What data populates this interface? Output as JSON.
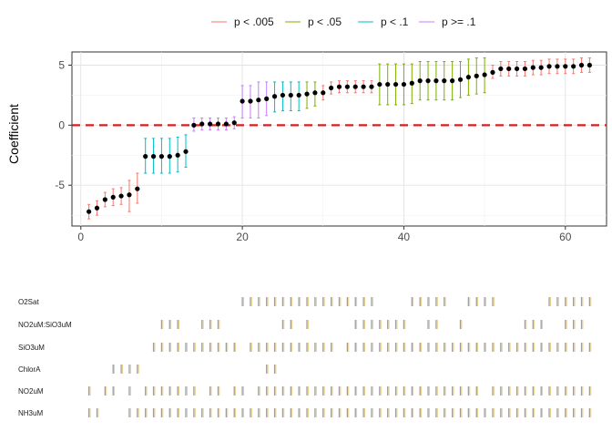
{
  "legend": {
    "items": [
      {
        "label": "p < .005",
        "color": "#F8766D"
      },
      {
        "label": "p < .05",
        "color": "#7CAE00"
      },
      {
        "label": "p < .1",
        "color": "#00BFC4"
      },
      {
        "label": "p >= .1",
        "color": "#C77CFF"
      }
    ],
    "placement": "top"
  },
  "chart_data": [
    {
      "type": "scatter",
      "title": "",
      "xlabel": "",
      "ylabel": "Coefficient",
      "xlim": [
        -1.1,
        65.1
      ],
      "ylim": [
        -8.4,
        6.1
      ],
      "x_ticks": [
        0,
        20,
        40,
        60
      ],
      "y_ticks": [
        -5,
        0,
        5
      ],
      "grid": true,
      "reference_line": {
        "y": 0,
        "style": "dashed",
        "color": "#DD1C1C"
      },
      "points": [
        {
          "x": 1,
          "y": -7.2,
          "lo": -7.8,
          "hi": -6.6,
          "group": "p < .005"
        },
        {
          "x": 2,
          "y": -6.9,
          "lo": -7.5,
          "hi": -6.3,
          "group": "p < .005"
        },
        {
          "x": 3,
          "y": -6.2,
          "lo": -6.8,
          "hi": -5.6,
          "group": "p < .005"
        },
        {
          "x": 4,
          "y": -6.0,
          "lo": -6.7,
          "hi": -5.3,
          "group": "p < .005"
        },
        {
          "x": 5,
          "y": -5.9,
          "lo": -6.6,
          "hi": -5.2,
          "group": "p < .005"
        },
        {
          "x": 6,
          "y": -5.8,
          "lo": -7.2,
          "hi": -4.6,
          "group": "p < .005"
        },
        {
          "x": 7,
          "y": -5.3,
          "lo": -6.5,
          "hi": -4.0,
          "group": "p < .005"
        },
        {
          "x": 8,
          "y": -2.6,
          "lo": -4.0,
          "hi": -1.1,
          "group": "p < .1"
        },
        {
          "x": 9,
          "y": -2.6,
          "lo": -4.0,
          "hi": -1.1,
          "group": "p < .1"
        },
        {
          "x": 10,
          "y": -2.6,
          "lo": -4.0,
          "hi": -1.1,
          "group": "p < .1"
        },
        {
          "x": 11,
          "y": -2.6,
          "lo": -4.0,
          "hi": -1.1,
          "group": "p < .1"
        },
        {
          "x": 12,
          "y": -2.5,
          "lo": -3.9,
          "hi": -1.0,
          "group": "p < .1"
        },
        {
          "x": 13,
          "y": -2.2,
          "lo": -3.5,
          "hi": -0.8,
          "group": "p < .1"
        },
        {
          "x": 14,
          "y": 0.0,
          "lo": -0.5,
          "hi": 0.6,
          "group": "p >= .1"
        },
        {
          "x": 15,
          "y": 0.1,
          "lo": -0.4,
          "hi": 0.6,
          "group": "p >= .1"
        },
        {
          "x": 16,
          "y": 0.1,
          "lo": -0.4,
          "hi": 0.6,
          "group": "p >= .1"
        },
        {
          "x": 17,
          "y": 0.1,
          "lo": -0.4,
          "hi": 0.6,
          "group": "p >= .1"
        },
        {
          "x": 18,
          "y": 0.1,
          "lo": -0.4,
          "hi": 0.6,
          "group": "p >= .1"
        },
        {
          "x": 19,
          "y": 0.2,
          "lo": -0.3,
          "hi": 0.7,
          "group": "p >= .1"
        },
        {
          "x": 20,
          "y": 2.0,
          "lo": 0.6,
          "hi": 3.3,
          "group": "p >= .1"
        },
        {
          "x": 21,
          "y": 2.0,
          "lo": 0.6,
          "hi": 3.3,
          "group": "p >= .1"
        },
        {
          "x": 22,
          "y": 2.1,
          "lo": 0.6,
          "hi": 3.6,
          "group": "p >= .1"
        },
        {
          "x": 23,
          "y": 2.2,
          "lo": 0.8,
          "hi": 3.6,
          "group": "p >= .1"
        },
        {
          "x": 24,
          "y": 2.4,
          "lo": 1.1,
          "hi": 3.6,
          "group": "p < .1"
        },
        {
          "x": 25,
          "y": 2.5,
          "lo": 1.2,
          "hi": 3.6,
          "group": "p < .1"
        },
        {
          "x": 26,
          "y": 2.5,
          "lo": 1.2,
          "hi": 3.6,
          "group": "p < .1"
        },
        {
          "x": 27,
          "y": 2.5,
          "lo": 1.2,
          "hi": 3.6,
          "group": "p < .1"
        },
        {
          "x": 28,
          "y": 2.6,
          "lo": 1.4,
          "hi": 3.6,
          "group": "p < .05"
        },
        {
          "x": 29,
          "y": 2.7,
          "lo": 1.6,
          "hi": 3.6,
          "group": "p < .05"
        },
        {
          "x": 30,
          "y": 2.7,
          "lo": 2.1,
          "hi": 3.3,
          "group": "p < .005"
        },
        {
          "x": 31,
          "y": 3.1,
          "lo": 2.6,
          "hi": 3.6,
          "group": "p < .005"
        },
        {
          "x": 32,
          "y": 3.2,
          "lo": 2.7,
          "hi": 3.7,
          "group": "p < .005"
        },
        {
          "x": 33,
          "y": 3.2,
          "lo": 2.7,
          "hi": 3.7,
          "group": "p < .005"
        },
        {
          "x": 34,
          "y": 3.2,
          "lo": 2.7,
          "hi": 3.7,
          "group": "p < .005"
        },
        {
          "x": 35,
          "y": 3.2,
          "lo": 2.7,
          "hi": 3.7,
          "group": "p < .005"
        },
        {
          "x": 36,
          "y": 3.2,
          "lo": 2.7,
          "hi": 3.7,
          "group": "p < .005"
        },
        {
          "x": 37,
          "y": 3.4,
          "lo": 1.7,
          "hi": 5.1,
          "group": "p < .05"
        },
        {
          "x": 38,
          "y": 3.4,
          "lo": 1.7,
          "hi": 5.1,
          "group": "p < .05"
        },
        {
          "x": 39,
          "y": 3.4,
          "lo": 1.7,
          "hi": 5.1,
          "group": "p < .05"
        },
        {
          "x": 40,
          "y": 3.4,
          "lo": 1.7,
          "hi": 5.1,
          "group": "p < .05"
        },
        {
          "x": 41,
          "y": 3.5,
          "lo": 1.8,
          "hi": 5.1,
          "group": "p < .05"
        },
        {
          "x": 42,
          "y": 3.7,
          "lo": 2.1,
          "hi": 5.3,
          "group": "p < .05"
        },
        {
          "x": 43,
          "y": 3.7,
          "lo": 2.1,
          "hi": 5.3,
          "group": "p < .05"
        },
        {
          "x": 44,
          "y": 3.7,
          "lo": 2.1,
          "hi": 5.3,
          "group": "p < .05"
        },
        {
          "x": 45,
          "y": 3.7,
          "lo": 2.1,
          "hi": 5.3,
          "group": "p < .05"
        },
        {
          "x": 46,
          "y": 3.7,
          "lo": 2.1,
          "hi": 5.3,
          "group": "p < .05"
        },
        {
          "x": 47,
          "y": 3.8,
          "lo": 2.3,
          "hi": 5.3,
          "group": "p < .05"
        },
        {
          "x": 48,
          "y": 4.0,
          "lo": 2.5,
          "hi": 5.5,
          "group": "p < .05"
        },
        {
          "x": 49,
          "y": 4.1,
          "lo": 2.6,
          "hi": 5.6,
          "group": "p < .05"
        },
        {
          "x": 50,
          "y": 4.2,
          "lo": 2.7,
          "hi": 5.6,
          "group": "p < .05"
        },
        {
          "x": 51,
          "y": 4.4,
          "lo": 3.9,
          "hi": 5.0,
          "group": "p < .005"
        },
        {
          "x": 52,
          "y": 4.7,
          "lo": 4.1,
          "hi": 5.3,
          "group": "p < .005"
        },
        {
          "x": 53,
          "y": 4.7,
          "lo": 4.1,
          "hi": 5.3,
          "group": "p < .005"
        },
        {
          "x": 54,
          "y": 4.7,
          "lo": 4.1,
          "hi": 5.3,
          "group": "p < .005"
        },
        {
          "x": 55,
          "y": 4.7,
          "lo": 4.1,
          "hi": 5.3,
          "group": "p < .005"
        },
        {
          "x": 56,
          "y": 4.8,
          "lo": 4.2,
          "hi": 5.4,
          "group": "p < .005"
        },
        {
          "x": 57,
          "y": 4.8,
          "lo": 4.2,
          "hi": 5.4,
          "group": "p < .005"
        },
        {
          "x": 58,
          "y": 4.9,
          "lo": 4.3,
          "hi": 5.5,
          "group": "p < .005"
        },
        {
          "x": 59,
          "y": 4.9,
          "lo": 4.3,
          "hi": 5.5,
          "group": "p < .005"
        },
        {
          "x": 60,
          "y": 4.9,
          "lo": 4.3,
          "hi": 5.5,
          "group": "p < .005"
        },
        {
          "x": 61,
          "y": 4.9,
          "lo": 4.3,
          "hi": 5.5,
          "group": "p < .005"
        },
        {
          "x": 62,
          "y": 5.0,
          "lo": 4.4,
          "hi": 5.6,
          "group": "p < .005"
        },
        {
          "x": 63,
          "y": 5.0,
          "lo": 4.4,
          "hi": 5.6,
          "group": "p < .005"
        }
      ]
    },
    {
      "type": "heatmap",
      "title": "",
      "xlim": [
        1,
        63
      ],
      "tick_color": "#9E9E9E",
      "tick_color_alt": "#E9C77F",
      "rows": [
        {
          "label": "O2Sat",
          "cols": [
            20,
            21,
            22,
            23,
            24,
            25,
            26,
            27,
            28,
            29,
            30,
            31,
            32,
            33,
            34,
            35,
            36,
            41,
            42,
            43,
            44,
            45,
            48,
            49,
            50,
            51,
            58,
            59,
            60,
            61,
            62,
            63
          ]
        },
        {
          "label": "NO2uM:SiO3uM",
          "cols": [
            10,
            11,
            12,
            15,
            16,
            17,
            25,
            26,
            28,
            34,
            35,
            36,
            37,
            38,
            39,
            40,
            43,
            44,
            47,
            55,
            56,
            57,
            60,
            61,
            62
          ]
        },
        {
          "label": "SiO3uM",
          "cols": [
            9,
            10,
            11,
            12,
            13,
            14,
            15,
            16,
            17,
            18,
            19,
            21,
            22,
            23,
            24,
            25,
            26,
            27,
            28,
            29,
            30,
            31,
            33,
            34,
            35,
            36,
            37,
            38,
            39,
            40,
            41,
            42,
            43,
            44,
            45,
            46,
            47,
            48,
            49,
            50,
            51,
            52,
            53,
            54,
            55,
            56,
            57,
            58,
            59,
            60,
            61,
            62,
            63
          ]
        },
        {
          "label": "ChlorA",
          "cols": [
            4,
            5,
            6,
            7,
            23,
            24
          ]
        },
        {
          "label": "NO2uM",
          "cols": [
            1,
            3,
            4,
            6,
            8,
            9,
            10,
            11,
            12,
            13,
            14,
            16,
            17,
            19,
            20,
            22,
            23,
            24,
            25,
            26,
            27,
            28,
            29,
            30,
            31,
            32,
            33,
            34,
            35,
            36,
            37,
            38,
            39,
            40,
            41,
            42,
            43,
            44,
            45,
            46,
            47,
            48,
            49,
            51,
            52,
            53,
            54,
            55,
            56,
            57,
            58,
            59,
            60,
            61,
            62,
            63
          ]
        },
        {
          "label": "NH3uM",
          "cols": [
            1,
            2,
            6,
            7,
            8,
            9,
            10,
            11,
            12,
            13,
            14,
            15,
            16,
            17,
            18,
            19,
            20,
            21,
            22,
            23,
            24,
            25,
            26,
            27,
            28,
            29,
            30,
            31,
            32,
            33,
            34,
            35,
            36,
            37,
            38,
            39,
            40,
            41,
            42,
            43,
            44,
            45,
            46,
            47,
            48,
            49,
            50,
            51,
            52,
            53,
            54,
            55,
            56,
            57,
            58,
            59,
            60,
            61,
            62,
            63
          ]
        }
      ]
    }
  ]
}
